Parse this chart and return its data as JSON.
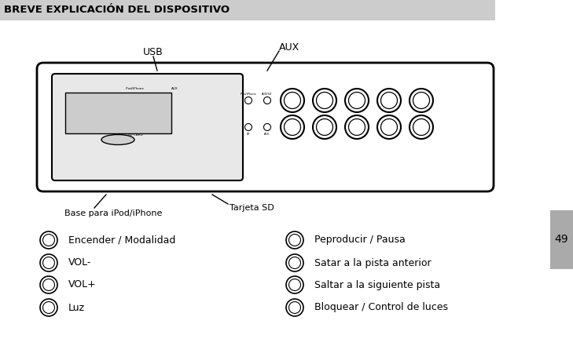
{
  "title": "BREVE EXPLICACIÓN DEL DISPOSITIVO",
  "title_bg": "#cccccc",
  "page_number": "49",
  "page_bg": "#aaaaaa",
  "background_color": "#ffffff",
  "usb_label": "USB",
  "aux_label": "AUX",
  "base_label": "Base para iPod/iPhone",
  "sd_label": "Tarjeta SD",
  "left_items": [
    {
      "text": "Encender / Modalidad"
    },
    {
      "text": "VOL-"
    },
    {
      "text": "VOL+"
    },
    {
      "text": "Luz"
    }
  ],
  "right_items": [
    {
      "text": "Peproducir / Pausa"
    },
    {
      "text": "Satar a la pista anterior"
    },
    {
      "text": "Saltar a la siguiente pista"
    },
    {
      "text": "Bloquear / Control de luces"
    }
  ]
}
